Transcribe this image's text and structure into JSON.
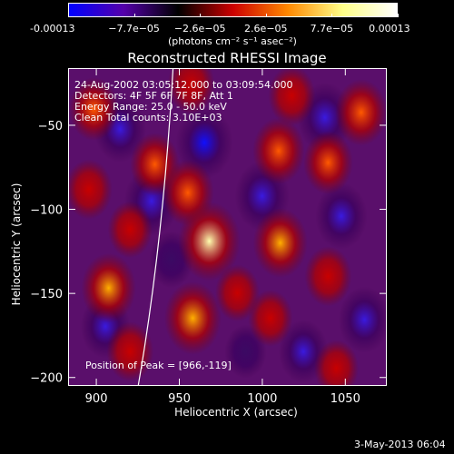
{
  "colorbar": {
    "ticks": [
      "-0.00013",
      "−7.7e−05",
      "−2.6e−05",
      "2.6e−05",
      "7.7e−05",
      "0.00013"
    ],
    "units_label": "(photons cm⁻² s⁻¹ asec⁻²)",
    "colors": [
      "#0000ff",
      "#5500aa",
      "#000000",
      "#cc0000",
      "#ff8800",
      "#ffff88",
      "#ffffff"
    ]
  },
  "plot": {
    "title": "Reconstructed RHESSI Image",
    "annotations": {
      "time_range": "24-Aug-2002 03:05:12.000 to 03:09:54.000",
      "detectors": "Detectors: 4F 5F 6F 7F 8F, Att 1",
      "energy": "Energy Range: 25.0 - 50.0 keV",
      "clean": "Clean     Total counts: 3.10E+03",
      "peak": "Position of Peak = [966,-119]"
    }
  },
  "footer": {
    "date": "3-May-2013 06:04"
  },
  "chart_data": {
    "type": "heatmap",
    "title": "Reconstructed RHESSI Image",
    "xlabel": "Heliocentric X (arcsec)",
    "ylabel": "Heliocentric Y (arcsec)",
    "xlim": [
      883,
      1075
    ],
    "ylim": [
      -205,
      -16
    ],
    "xticks": [
      900,
      950,
      1000,
      1050
    ],
    "yticks": [
      -50,
      -100,
      -150,
      -200
    ],
    "colorbar_range": [
      -0.00013,
      0.00013
    ],
    "peak": [
      966,
      -119
    ],
    "sources": [
      {
        "x": 968,
        "y": -119,
        "value": 0.00013
      },
      {
        "x": 958,
        "y": -165,
        "value": 0.00011
      },
      {
        "x": 907,
        "y": -147,
        "value": 0.0001
      },
      {
        "x": 1011,
        "y": -120,
        "value": 0.0001
      },
      {
        "x": 955,
        "y": -90,
        "value": 9e-05
      },
      {
        "x": 935,
        "y": -73,
        "value": 8e-05
      },
      {
        "x": 1010,
        "y": -65,
        "value": 9e-05
      },
      {
        "x": 1040,
        "y": -72,
        "value": 8e-05
      },
      {
        "x": 1060,
        "y": -42,
        "value": 9e-05
      },
      {
        "x": 1018,
        "y": -32,
        "value": 7e-05
      },
      {
        "x": 957,
        "y": -25,
        "value": 7e-05
      },
      {
        "x": 898,
        "y": -40,
        "value": 8e-05
      },
      {
        "x": 895,
        "y": -88,
        "value": 7e-05
      },
      {
        "x": 920,
        "y": -112,
        "value": 6e-05
      },
      {
        "x": 920,
        "y": -185,
        "value": 7e-05
      },
      {
        "x": 1005,
        "y": -165,
        "value": 6e-05
      },
      {
        "x": 1040,
        "y": -140,
        "value": 7e-05
      },
      {
        "x": 1045,
        "y": -195,
        "value": 6e-05
      },
      {
        "x": 985,
        "y": -150,
        "value": 6e-05
      },
      {
        "x": 933,
        "y": -95,
        "value": -0.0001
      },
      {
        "x": 965,
        "y": -60,
        "value": -0.00011
      },
      {
        "x": 914,
        "y": -52,
        "value": -9e-05
      },
      {
        "x": 1000,
        "y": -92,
        "value": -0.0001
      },
      {
        "x": 1048,
        "y": -104,
        "value": -9e-05
      },
      {
        "x": 1038,
        "y": -45,
        "value": -0.0001
      },
      {
        "x": 1062,
        "y": -166,
        "value": -9e-05
      },
      {
        "x": 945,
        "y": -130,
        "value": -6e-05
      },
      {
        "x": 905,
        "y": -170,
        "value": -8e-05
      },
      {
        "x": 1025,
        "y": -185,
        "value": -8e-05
      },
      {
        "x": 990,
        "y": -185,
        "value": -5e-05
      }
    ]
  }
}
